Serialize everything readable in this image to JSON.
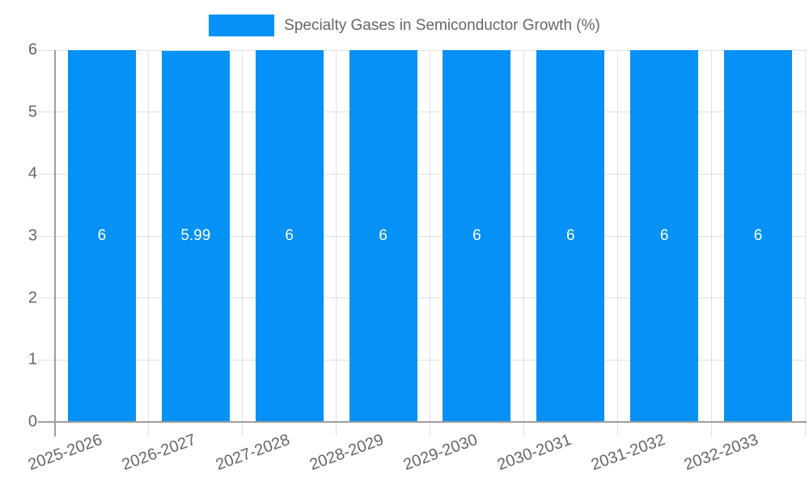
{
  "legend": {
    "label": "Specialty Gases in Semiconductor Growth (%)"
  },
  "chart_data": {
    "type": "bar",
    "title": "Specialty Gases in Semiconductor Growth (%)",
    "categories": [
      "2025-2026",
      "2026-2027",
      "2027-2028",
      "2028-2029",
      "2029-2030",
      "2030-2031",
      "2031-2032",
      "2032-2033"
    ],
    "values": [
      6,
      5.99,
      6,
      6,
      6,
      6,
      6,
      6
    ],
    "value_labels": [
      "6",
      "5.99",
      "6",
      "6",
      "6",
      "6",
      "6",
      "6"
    ],
    "xlabel": "",
    "ylabel": "",
    "ylim": [
      0,
      6
    ],
    "yticks": [
      0,
      1,
      2,
      3,
      4,
      5,
      6
    ],
    "grid": true,
    "legend_position": "top-center",
    "bar_color": "#0591f5",
    "value_label_color": "#ffffff",
    "grid_color": "#e0e0e0",
    "axis_color": "#9e9e9e",
    "text_color": "#666666",
    "background_color": "#ffffff"
  }
}
